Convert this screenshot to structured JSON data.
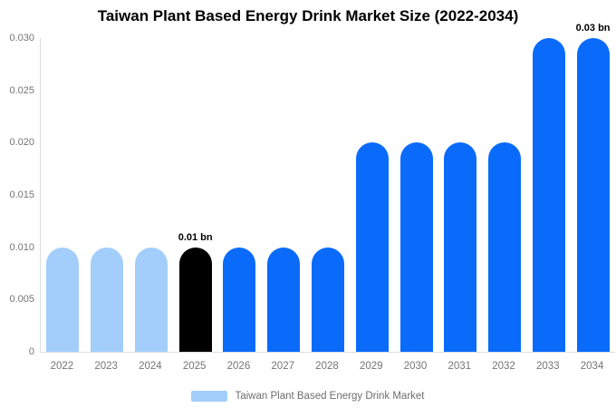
{
  "title": "Taiwan Plant Based Energy Drink Market Size (2022-2034)",
  "legend": {
    "label": "Taiwan Plant Based Energy Drink Market",
    "color": "#a3cefb"
  },
  "colors": {
    "bar_blue": "#0a6bfb",
    "bar_light_blue": "#a3cefb",
    "bar_black": "#000000",
    "axis_line": "#dddddd",
    "tick_text": "#757575",
    "title_text": "#000000"
  },
  "chart_data": {
    "type": "bar",
    "title": "Taiwan Plant Based Energy Drink Market Size (2022-2034)",
    "xlabel": "",
    "ylabel": "",
    "categories": [
      "2022",
      "2023",
      "2024",
      "2025",
      "2026",
      "2027",
      "2028",
      "2029",
      "2030",
      "2031",
      "2032",
      "2033",
      "2034"
    ],
    "series": [
      {
        "name": "Taiwan Plant Based Energy Drink Market",
        "values": [
          0.01,
          0.01,
          0.01,
          0.01,
          0.01,
          0.01,
          0.01,
          0.02,
          0.02,
          0.02,
          0.02,
          0.03,
          0.03
        ]
      }
    ],
    "bar_colors": [
      "#a3cefb",
      "#a3cefb",
      "#a3cefb",
      "#000000",
      "#0a6bfb",
      "#0a6bfb",
      "#0a6bfb",
      "#0a6bfb",
      "#0a6bfb",
      "#0a6bfb",
      "#0a6bfb",
      "#0a6bfb",
      "#0a6bfb"
    ],
    "annotations": [
      {
        "category": "2025",
        "index": 3,
        "text": "0.01 bn"
      },
      {
        "category": "2034",
        "index": 12,
        "text": "0.03 bn"
      }
    ],
    "yticks": [
      {
        "value": 0,
        "label": "0"
      },
      {
        "value": 0.005,
        "label": "0.005"
      },
      {
        "value": 0.01,
        "label": "0.010"
      },
      {
        "value": 0.015,
        "label": "0.015"
      },
      {
        "value": 0.02,
        "label": "0.020"
      },
      {
        "value": 0.025,
        "label": "0.025"
      },
      {
        "value": 0.03,
        "label": "0.030"
      }
    ],
    "ylim": [
      0,
      0.03
    ],
    "grid": false,
    "legend_position": "bottom",
    "unit": "bn"
  }
}
